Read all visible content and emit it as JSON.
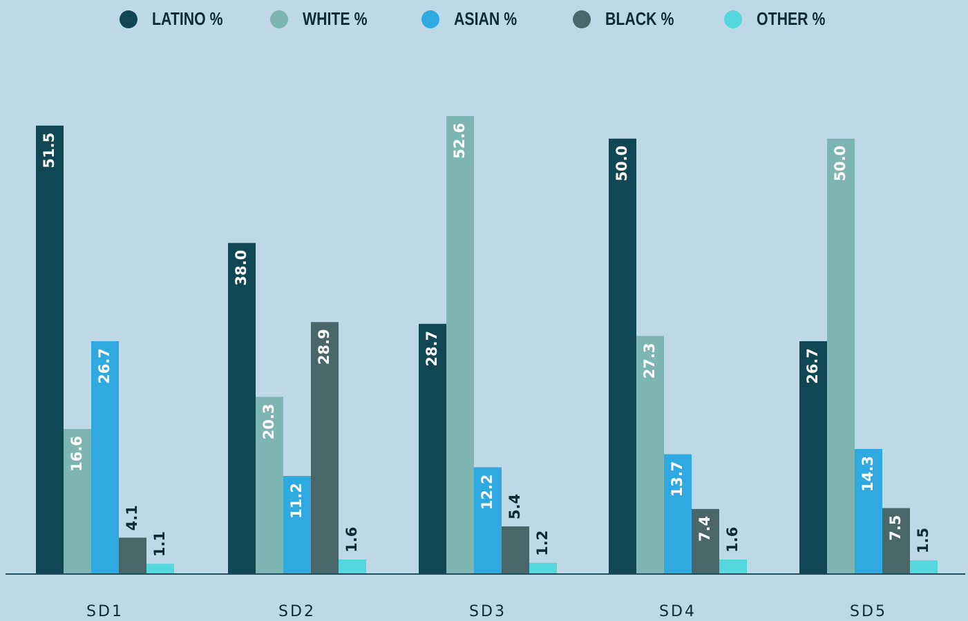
{
  "chart_data": {
    "type": "bar",
    "categories": [
      "SD1",
      "SD2",
      "SD3",
      "SD4",
      "SD5"
    ],
    "series": [
      {
        "name": "LATINO %",
        "color": "#0f4752",
        "values": [
          51.5,
          38.0,
          28.7,
          50.0,
          26.7
        ],
        "value_labels": [
          "51.5",
          "38.0",
          "28.7",
          "50.0",
          "26.7"
        ]
      },
      {
        "name": "WHITE %",
        "color": "#7db5b3",
        "values": [
          16.6,
          20.3,
          52.6,
          27.3,
          50.0
        ],
        "value_labels": [
          "16.6",
          "20.3",
          "52.6",
          "27.3",
          "50.0"
        ]
      },
      {
        "name": "ASIAN %",
        "color": "#2fa9e0",
        "values": [
          26.7,
          11.2,
          12.2,
          13.7,
          14.3
        ],
        "value_labels": [
          "26.7",
          "11.2",
          "12.2",
          "13.7",
          "14.3"
        ]
      },
      {
        "name": "BLACK %",
        "color": "#4a6669",
        "values": [
          4.1,
          28.9,
          5.4,
          7.4,
          7.5
        ],
        "value_labels": [
          "4.1",
          "28.9",
          "5.4",
          "7.4",
          "7.5"
        ]
      },
      {
        "name": "OTHER %",
        "color": "#55d8dc",
        "values": [
          1.1,
          1.6,
          1.2,
          1.6,
          1.5
        ],
        "value_labels": [
          "1.1",
          "1.6",
          "1.2",
          "1.6",
          "1.5"
        ]
      }
    ]
  }
}
